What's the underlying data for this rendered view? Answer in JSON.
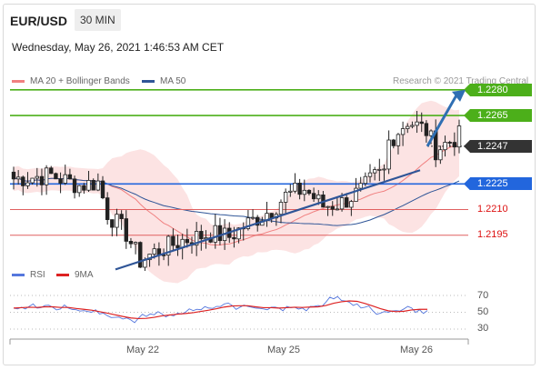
{
  "header": {
    "symbol": "EUR/USD",
    "interval": "30 MIN",
    "timestamp": "Wednesday, May 26, 2021 1:46:53 AM CET"
  },
  "legend": {
    "bollinger": "MA 20 + Bollinger Bands",
    "ma50": "MA 50",
    "credit": "Research © 2021 Trading Central",
    "rsi": "RSI",
    "rsi_ma": "9MA"
  },
  "colors": {
    "bollinger": "#f08080",
    "ma50": "#2f5597",
    "resistance": "#4caf1a",
    "current": "#333333",
    "support": "#2266dd",
    "minor_support": "#e06060",
    "rsi": "#5577dd",
    "rsi_ma": "#dd2222",
    "candle_up": "#ffffff",
    "candle_down": "#222222"
  },
  "chart_data": {
    "type": "candlestick",
    "x_tick_labels": [
      "May 22",
      "May 25",
      "May 26"
    ],
    "y_range": [
      1.2172,
      1.229
    ],
    "levels": [
      {
        "label": "1.2280",
        "value": 1.228,
        "kind": "resistance"
      },
      {
        "label": "1.2265",
        "value": 1.2265,
        "kind": "resistance"
      },
      {
        "label": "1.2247",
        "value": 1.2247,
        "kind": "current"
      },
      {
        "label": "1.2225",
        "value": 1.2225,
        "kind": "support"
      },
      {
        "label": "1.2210",
        "value": 1.221,
        "kind": "minor_support"
      },
      {
        "label": "1.2195",
        "value": 1.2195,
        "kind": "minor_support"
      }
    ],
    "trend_line": {
      "start": 1.2175,
      "end": 1.2233
    },
    "projection_arrow": {
      "from": 1.2247,
      "to": 1.228
    },
    "rsi": {
      "ticks": [
        "70",
        "50",
        "30"
      ],
      "values": [
        55,
        56,
        57,
        55,
        58,
        56,
        54,
        55,
        53,
        52,
        50,
        48,
        46,
        44,
        42,
        41,
        43,
        45,
        47,
        48,
        47,
        49,
        50,
        52,
        53,
        55,
        57,
        60,
        58,
        56,
        57,
        55,
        54,
        56,
        55,
        57,
        56,
        55,
        57,
        58,
        62,
        66,
        64,
        62,
        60,
        56,
        52,
        49,
        50,
        52,
        54,
        55,
        53,
        52
      ]
    }
  }
}
